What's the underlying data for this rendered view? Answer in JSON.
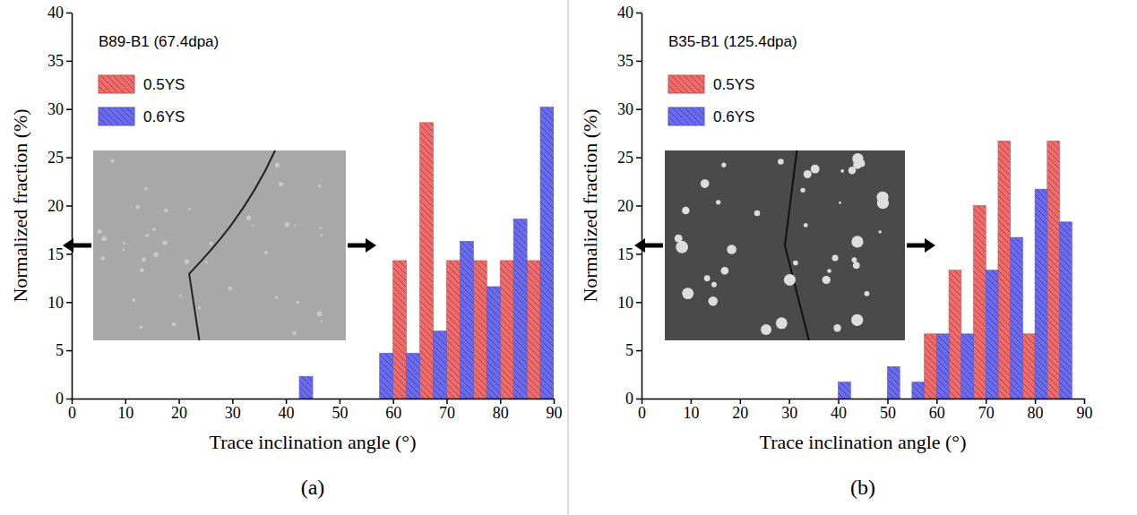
{
  "chart_data": [
    {
      "type": "bar",
      "title": "B89-B1 (67.4dpa)",
      "panel_label": "(a)",
      "x_label": "Trace inclination angle (°)",
      "y_label": "Normalized fraction (%)",
      "x": [
        42.5,
        47.5,
        52.5,
        57.5,
        62.5,
        67.5,
        72.5,
        77.5,
        82.5,
        87.5
      ],
      "series": [
        {
          "name": "0.5YS",
          "color": "#f26b6b",
          "values": [
            0,
            0,
            0,
            0,
            14.3,
            28.6,
            14.3,
            14.3,
            14.3,
            14.3
          ]
        },
        {
          "name": "0.6YS",
          "color": "#6b6bf2",
          "values": [
            2.3,
            0,
            0,
            4.7,
            4.7,
            7.0,
            16.3,
            11.6,
            18.6,
            30.2
          ]
        }
      ],
      "xlim": [
        0,
        90
      ],
      "xticks": [
        0,
        10,
        20,
        30,
        40,
        50,
        60,
        70,
        80,
        90
      ],
      "ylim": [
        0,
        40
      ],
      "yticks": [
        0,
        5,
        10,
        15,
        20,
        25,
        30,
        35,
        40
      ],
      "legend": "upper left"
    },
    {
      "type": "bar",
      "title": "B35-B1 (125.4dpa)",
      "panel_label": "(b)",
      "x_label": "Trace inclination angle (°)",
      "y_label": "Normalized fraction (%)",
      "x": [
        40,
        45,
        50,
        55,
        60,
        65,
        70,
        75,
        80,
        85
      ],
      "series": [
        {
          "name": "0.5YS",
          "color": "#f26b6b",
          "values": [
            0,
            0,
            0,
            0,
            6.7,
            13.3,
            20.0,
            26.7,
            6.7,
            26.7
          ]
        },
        {
          "name": "0.6YS",
          "color": "#6b6bf2",
          "values": [
            1.7,
            0,
            3.3,
            1.7,
            6.7,
            6.7,
            13.3,
            16.7,
            21.7,
            18.3
          ]
        }
      ],
      "xlim": [
        0,
        90
      ],
      "xticks": [
        0,
        10,
        20,
        30,
        40,
        50,
        60,
        70,
        80,
        90
      ],
      "ylim": [
        0,
        40
      ],
      "yticks": [
        0,
        5,
        10,
        15,
        20,
        25,
        30,
        35,
        40
      ],
      "legend": "upper left"
    }
  ]
}
